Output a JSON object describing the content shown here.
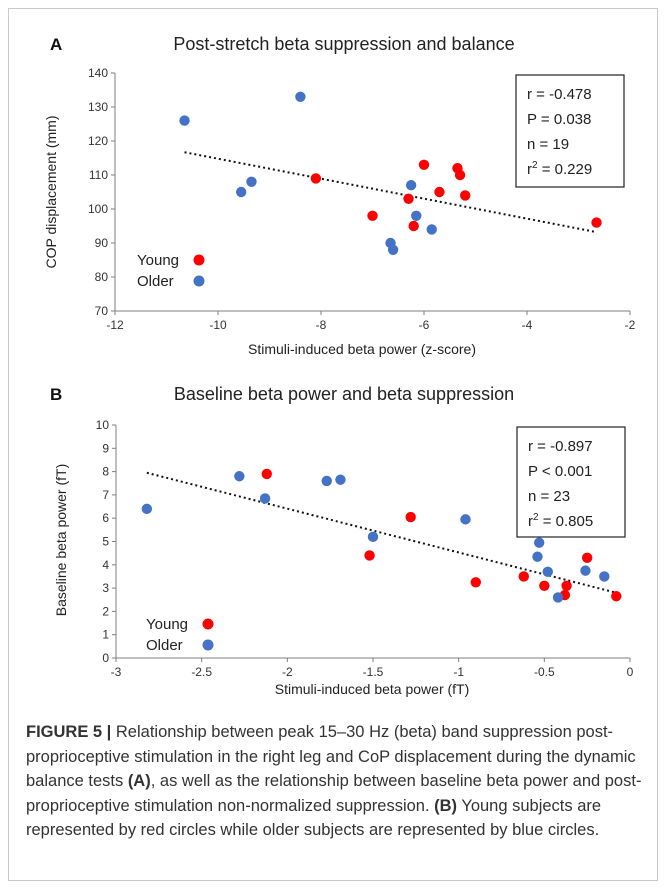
{
  "figure": {
    "label": "FIGURE 5 |",
    "caption_part1": " Relationship between peak 15–30 Hz (beta) band suppression post-proprioceptive stimulation in the right leg and CoP displacement during the dynamic balance tests ",
    "ref_a": "(A)",
    "caption_part2": ", as well as the relationship between baseline beta power and post-proprioceptive stimulation non-normalized suppression. ",
    "ref_b": "(B)",
    "caption_part3": " Young subjects are represented by red circles while older subjects are represented by blue circles."
  },
  "colors": {
    "young": "#ff0000",
    "older": "#4472c4",
    "trend": "#111111"
  },
  "chart_data": [
    {
      "panel": "A",
      "type": "scatter",
      "title": "Post-stretch beta suppression and balance",
      "xlabel": "Stimuli-induced beta power (z-score)",
      "ylabel": "COP displacement (mm)",
      "xlim": [
        -12,
        -2
      ],
      "ylim": [
        70,
        140
      ],
      "xticks": [
        -12,
        -10,
        -8,
        -6,
        -4,
        -2
      ],
      "yticks": [
        70,
        80,
        90,
        100,
        110,
        120,
        130,
        140
      ],
      "grid": false,
      "legend_position": "bottom-left",
      "series": [
        {
          "name": "Young",
          "color": "red",
          "points": [
            [
              -8.1,
              109
            ],
            [
              -7.0,
              98
            ],
            [
              -6.3,
              103
            ],
            [
              -6.2,
              95
            ],
            [
              -6.0,
              113
            ],
            [
              -5.7,
              105
            ],
            [
              -5.35,
              112
            ],
            [
              -5.3,
              110
            ],
            [
              -5.2,
              104
            ],
            [
              -2.65,
              96
            ]
          ]
        },
        {
          "name": "Older",
          "color": "blue",
          "points": [
            [
              -10.65,
              126
            ],
            [
              -9.55,
              105
            ],
            [
              -9.35,
              108
            ],
            [
              -8.4,
              133
            ],
            [
              -6.65,
              90
            ],
            [
              -6.6,
              88
            ],
            [
              -6.25,
              107
            ],
            [
              -6.15,
              98
            ],
            [
              -5.85,
              94
            ]
          ]
        }
      ],
      "trendline": {
        "x1": -10.65,
        "y1": 116.7,
        "x2": -2.65,
        "y2": 93.2
      },
      "stats": [
        "r = -0.478",
        "P = 0.038",
        "n = 19",
        "r2 = 0.229"
      ]
    },
    {
      "panel": "B",
      "type": "scatter",
      "title": "Baseline beta power and beta suppression",
      "xlabel": "Stimuli-induced beta power (fT)",
      "ylabel": "Baseline beta power (fT)",
      "xlim": [
        -3,
        0
      ],
      "ylim": [
        0,
        10
      ],
      "xticks": [
        -3,
        -2.5,
        -2,
        -1.5,
        -1,
        -0.5,
        0
      ],
      "yticks": [
        0,
        1,
        2,
        3,
        4,
        5,
        6,
        7,
        8,
        9,
        10
      ],
      "grid": false,
      "legend_position": "bottom-left",
      "series": [
        {
          "name": "Young",
          "color": "red",
          "points": [
            [
              -2.12,
              7.9
            ],
            [
              -1.52,
              4.4
            ],
            [
              -1.28,
              6.05
            ],
            [
              -0.9,
              3.25
            ],
            [
              -0.62,
              3.5
            ],
            [
              -0.5,
              3.1
            ],
            [
              -0.37,
              3.1
            ],
            [
              -0.38,
              2.7
            ],
            [
              -0.25,
              4.3
            ],
            [
              -0.08,
              2.65
            ]
          ]
        },
        {
          "name": "Older",
          "color": "blue",
          "points": [
            [
              -2.82,
              6.4
            ],
            [
              -2.28,
              7.8
            ],
            [
              -2.13,
              6.85
            ],
            [
              -1.77,
              7.6
            ],
            [
              -1.69,
              7.65
            ],
            [
              -1.5,
              5.2
            ],
            [
              -0.96,
              5.95
            ],
            [
              -0.53,
              4.95
            ],
            [
              -0.54,
              4.35
            ],
            [
              -0.48,
              3.7
            ],
            [
              -0.42,
              2.6
            ],
            [
              -0.26,
              3.75
            ],
            [
              -0.15,
              3.5
            ]
          ]
        }
      ],
      "trendline": {
        "x1": -2.82,
        "y1": 7.95,
        "x2": -0.08,
        "y2": 2.8
      },
      "stats": [
        "r = -0.897",
        "P < 0.001",
        "n = 23",
        "r2 = 0.805"
      ]
    }
  ]
}
